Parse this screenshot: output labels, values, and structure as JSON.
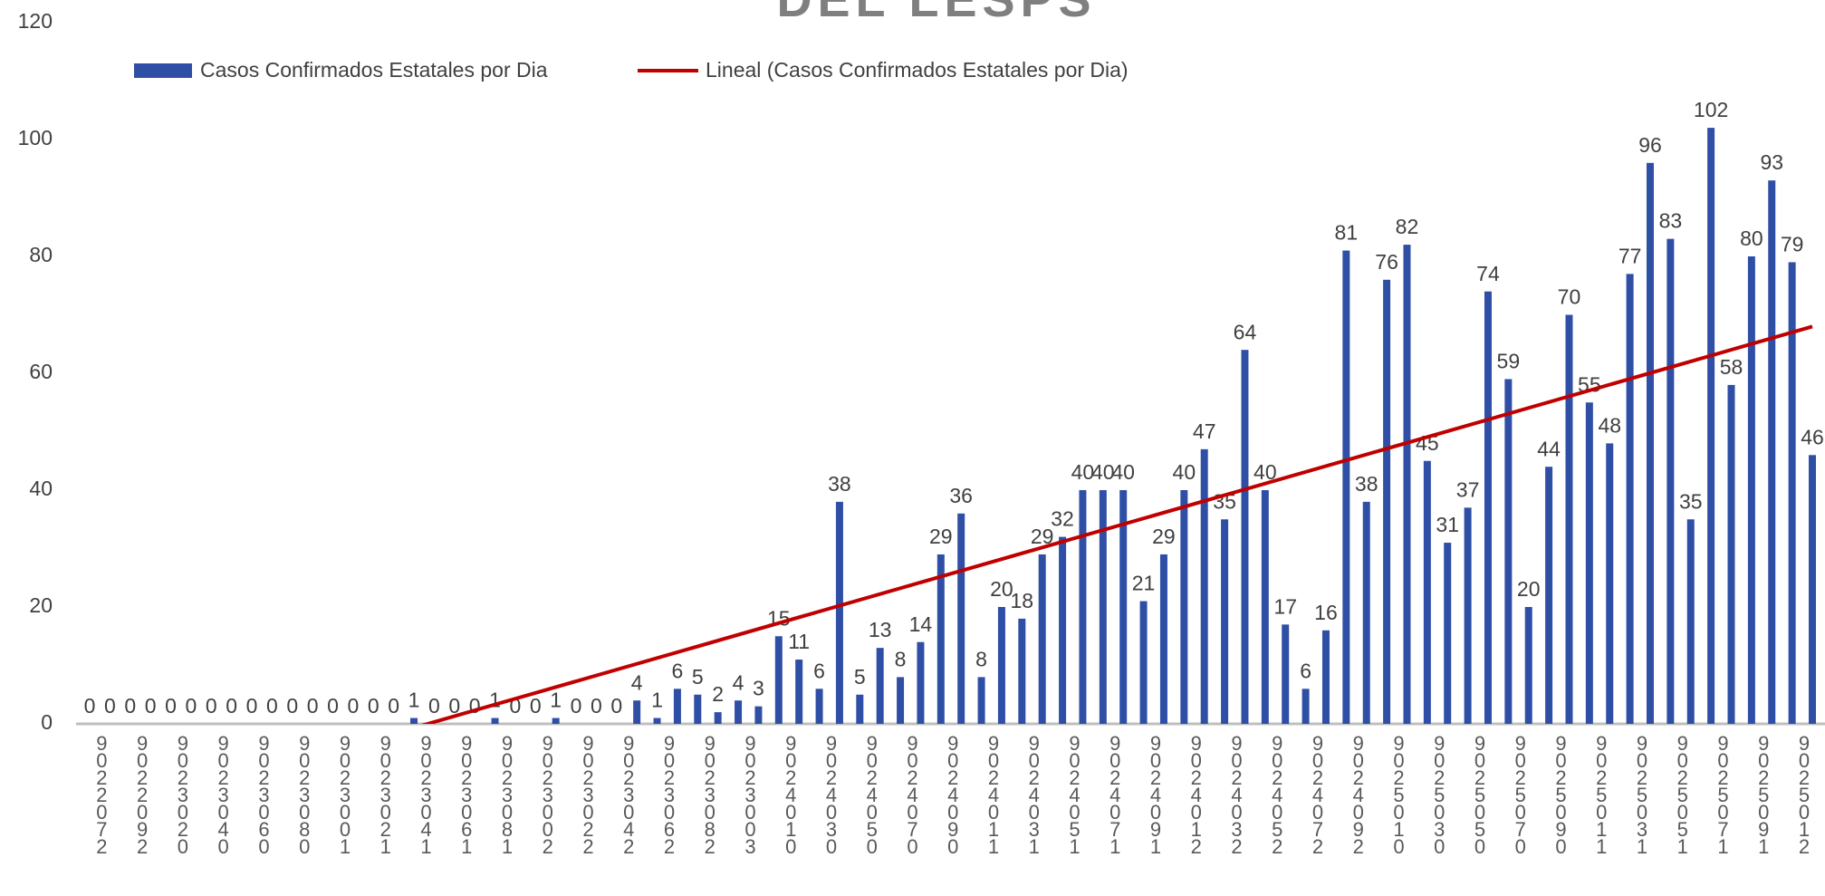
{
  "chart_data": {
    "type": "bar",
    "title": "DEL LESPS",
    "categories": [
      "9022072",
      null,
      "9022092",
      null,
      "9023020",
      null,
      "9023040",
      null,
      "9023060",
      null,
      "9023080",
      null,
      "9023001",
      null,
      "9023021",
      null,
      "9023041",
      null,
      "9023061",
      null,
      "9023081",
      null,
      "9023002",
      null,
      "9023022",
      null,
      "9023042",
      null,
      "9023062",
      null,
      "9023082",
      null,
      "9023003",
      null,
      "9024010",
      null,
      "9024030",
      null,
      "9024050",
      null,
      "9024070",
      null,
      "9024090",
      null,
      "9024011",
      null,
      "9024031",
      null,
      "9024051",
      null,
      "9024071",
      null,
      "9024091",
      null,
      "9024012",
      null,
      "9024032",
      null,
      "9024052",
      null,
      "9024072",
      null,
      "9024092",
      null,
      "9025010",
      null,
      "9025030",
      null,
      "9025050",
      null,
      "9025070",
      null,
      "9025090",
      null,
      "9025011",
      null,
      "9025031",
      null,
      "9025051",
      null,
      "9025071",
      null,
      "9025091",
      null,
      "9025012",
      null
    ],
    "series": [
      {
        "name": "Casos Confirmados Estatales por Dia",
        "color": "#2f4fa6",
        "values": [
          0,
          0,
          0,
          0,
          0,
          0,
          0,
          0,
          0,
          0,
          0,
          0,
          0,
          0,
          0,
          0,
          1,
          0,
          0,
          0,
          1,
          0,
          0,
          1,
          0,
          0,
          0,
          4,
          1,
          6,
          5,
          2,
          4,
          3,
          15,
          11,
          6,
          38,
          5,
          13,
          8,
          14,
          29,
          36,
          8,
          20,
          18,
          29,
          32,
          40,
          40,
          40,
          21,
          29,
          40,
          47,
          35,
          64,
          40,
          17,
          6,
          16,
          81,
          38,
          76,
          82,
          45,
          31,
          37,
          74,
          59,
          20,
          44,
          70,
          55,
          48,
          77,
          96,
          83,
          35,
          102,
          58,
          80,
          93,
          79,
          46
        ]
      }
    ],
    "trendline": {
      "name": "Lineal (Casos Confirmados Estatales por Dia)",
      "color": "#c00000",
      "values": [
        -16.6,
        68
      ]
    },
    "ylim": [
      0,
      120
    ],
    "yticks": [
      0,
      20,
      40,
      60,
      80,
      100,
      120
    ],
    "grid": false,
    "legend": "top"
  }
}
